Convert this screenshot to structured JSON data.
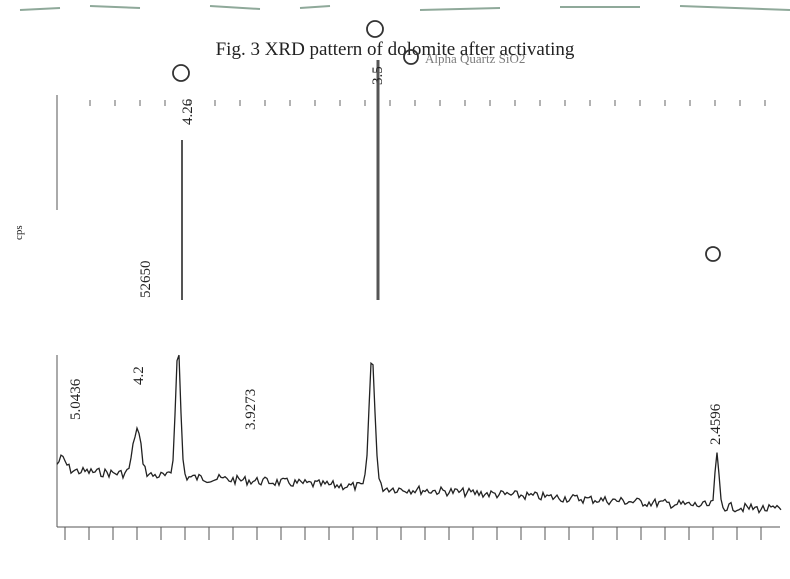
{
  "caption": "Fig. 3 XRD pattern of dolomite after activating",
  "legend": "Alpha Quartz SiO2",
  "axis_label": "cps",
  "peak_labels": [
    "4.26",
    "3.5",
    "52650",
    "5.0436",
    "4.2",
    "3.9273",
    "2.4596"
  ]
}
